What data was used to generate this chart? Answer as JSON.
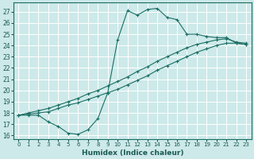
{
  "xlabel": "Humidex (Indice chaleur)",
  "xlim": [
    -0.5,
    23.5
  ],
  "ylim": [
    15.7,
    27.8
  ],
  "yticks": [
    16,
    17,
    18,
    19,
    20,
    21,
    22,
    23,
    24,
    25,
    26,
    27
  ],
  "xticks": [
    0,
    1,
    2,
    3,
    4,
    5,
    6,
    7,
    8,
    9,
    10,
    11,
    12,
    13,
    14,
    15,
    16,
    17,
    18,
    19,
    20,
    21,
    22,
    23
  ],
  "bg_color": "#cde9e9",
  "grid_color": "#ffffff",
  "line_color": "#1a6e64",
  "curve1_x": [
    0,
    1,
    2,
    3,
    4,
    5,
    6,
    7,
    8,
    9,
    10,
    11,
    12,
    13,
    14,
    15,
    16,
    17,
    18,
    19,
    20,
    21,
    22,
    23
  ],
  "curve1_y": [
    17.8,
    17.8,
    17.8,
    17.2,
    16.8,
    16.2,
    16.1,
    16.5,
    17.5,
    19.8,
    24.5,
    27.1,
    26.7,
    27.2,
    27.3,
    26.5,
    26.3,
    25.0,
    25.0,
    24.8,
    24.7,
    24.7,
    24.2,
    24.1
  ],
  "curve2_x": [
    0,
    1,
    2,
    3,
    4,
    5,
    6,
    7,
    8,
    9,
    10,
    11,
    12,
    13,
    14,
    15,
    16,
    17,
    18,
    19,
    20,
    21,
    22,
    23
  ],
  "curve2_y": [
    17.8,
    17.9,
    18.0,
    18.1,
    18.4,
    18.7,
    18.9,
    19.2,
    19.5,
    19.8,
    20.1,
    20.5,
    20.9,
    21.3,
    21.8,
    22.2,
    22.6,
    23.0,
    23.4,
    23.7,
    24.0,
    24.2,
    24.2,
    24.1
  ],
  "curve3_x": [
    0,
    1,
    2,
    3,
    4,
    5,
    6,
    7,
    8,
    9,
    10,
    11,
    12,
    13,
    14,
    15,
    16,
    17,
    18,
    19,
    20,
    21,
    22,
    23
  ],
  "curve3_y": [
    17.8,
    18.0,
    18.2,
    18.4,
    18.7,
    19.0,
    19.3,
    19.7,
    20.0,
    20.4,
    20.8,
    21.2,
    21.7,
    22.1,
    22.6,
    23.0,
    23.4,
    23.8,
    24.1,
    24.3,
    24.5,
    24.6,
    24.3,
    24.2
  ]
}
